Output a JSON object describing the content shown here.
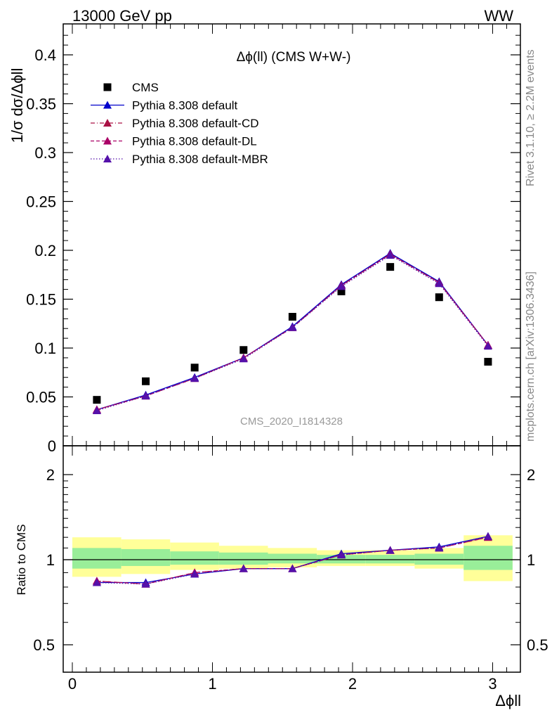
{
  "header": {
    "left": "13000 GeV pp",
    "right": "WW"
  },
  "side_labels": {
    "rivet": "Rivet 3.1.10, ≥ 2.2M events",
    "mcplots": "mcplots.cern.ch [arXiv:1306.3436]"
  },
  "chart_data": [
    {
      "type": "line",
      "title": "Δϕ(ll) (CMS W+W-)",
      "watermark": "CMS_2020_I1814328",
      "ylabel": "1/σ dσ/Δϕll",
      "xlabel": "Δϕll",
      "xlim": [
        -0.1,
        3.2
      ],
      "ylim": [
        0,
        0.43
      ],
      "yticks": [
        "0",
        "0.05",
        "0.1",
        "0.15",
        "0.2",
        "0.25",
        "0.3",
        "0.35",
        "0.4"
      ],
      "x": [
        0.175,
        0.524,
        0.873,
        1.222,
        1.571,
        1.92,
        2.269,
        2.618,
        2.967
      ],
      "legend_position": "top-left",
      "series": [
        {
          "name": "CMS",
          "style": "data",
          "color": "#000000",
          "values": [
            0.047,
            0.066,
            0.08,
            0.098,
            0.132,
            0.158,
            0.183,
            0.152,
            0.086
          ]
        },
        {
          "name": "Pythia 8.308 default",
          "style": "solid",
          "color": "#0000cc",
          "values": [
            0.037,
            0.052,
            0.07,
            0.09,
            0.122,
            0.165,
            0.197,
            0.168,
            0.103
          ]
        },
        {
          "name": "Pythia 8.308 default-CD",
          "style": "dashdot",
          "color": "#aa1144",
          "values": [
            0.037,
            0.051,
            0.069,
            0.09,
            0.121,
            0.164,
            0.196,
            0.167,
            0.103
          ]
        },
        {
          "name": "Pythia 8.308 default-DL",
          "style": "dashed",
          "color": "#aa0066",
          "values": [
            0.037,
            0.051,
            0.069,
            0.09,
            0.121,
            0.164,
            0.196,
            0.167,
            0.103
          ]
        },
        {
          "name": "Pythia 8.308 default-MBR",
          "style": "dotted",
          "color": "#5511aa",
          "values": [
            0.036,
            0.051,
            0.069,
            0.089,
            0.121,
            0.163,
            0.195,
            0.166,
            0.102
          ]
        }
      ]
    },
    {
      "type": "line",
      "ylabel": "Ratio to CMS",
      "xlabel": "Δϕll",
      "ylim": [
        0.35,
        2.25
      ],
      "yticks": [
        "0.5",
        "1",
        "2"
      ],
      "xticks": [
        "0",
        "1",
        "2",
        "3"
      ],
      "x": [
        0.175,
        0.524,
        0.873,
        1.222,
        1.571,
        1.92,
        2.269,
        2.618,
        2.967
      ],
      "bin_edges": [
        0,
        0.349,
        0.698,
        1.047,
        1.396,
        1.745,
        2.094,
        2.443,
        2.793,
        3.142
      ],
      "band_inner": [
        [
          0.93,
          1.1
        ],
        [
          0.95,
          1.09
        ],
        [
          0.96,
          1.07
        ],
        [
          0.96,
          1.06
        ],
        [
          0.97,
          1.05
        ],
        [
          0.97,
          1.04
        ],
        [
          0.97,
          1.04
        ],
        [
          0.96,
          1.05
        ],
        [
          0.92,
          1.12
        ]
      ],
      "band_outer": [
        [
          0.87,
          1.2
        ],
        [
          0.89,
          1.18
        ],
        [
          0.92,
          1.15
        ],
        [
          0.93,
          1.12
        ],
        [
          0.94,
          1.1
        ],
        [
          0.95,
          1.08
        ],
        [
          0.95,
          1.08
        ],
        [
          0.93,
          1.1
        ],
        [
          0.84,
          1.22
        ]
      ],
      "series": [
        {
          "name": "Pythia 8.308 default",
          "color": "#0000cc",
          "values": [
            0.83,
            0.83,
            0.89,
            0.93,
            0.93,
            1.05,
            1.08,
            1.11,
            1.21
          ]
        },
        {
          "name": "Pythia 8.308 default-CD",
          "color": "#aa1144",
          "values": [
            0.84,
            0.82,
            0.9,
            0.93,
            0.93,
            1.04,
            1.08,
            1.1,
            1.2
          ]
        },
        {
          "name": "Pythia 8.308 default-DL",
          "color": "#aa0066",
          "values": [
            0.84,
            0.82,
            0.9,
            0.93,
            0.93,
            1.04,
            1.08,
            1.1,
            1.2
          ]
        },
        {
          "name": "Pythia 8.308 default-MBR",
          "color": "#5511aa",
          "values": [
            0.83,
            0.82,
            0.89,
            0.93,
            0.93,
            1.04,
            1.08,
            1.1,
            1.21
          ]
        }
      ]
    }
  ]
}
